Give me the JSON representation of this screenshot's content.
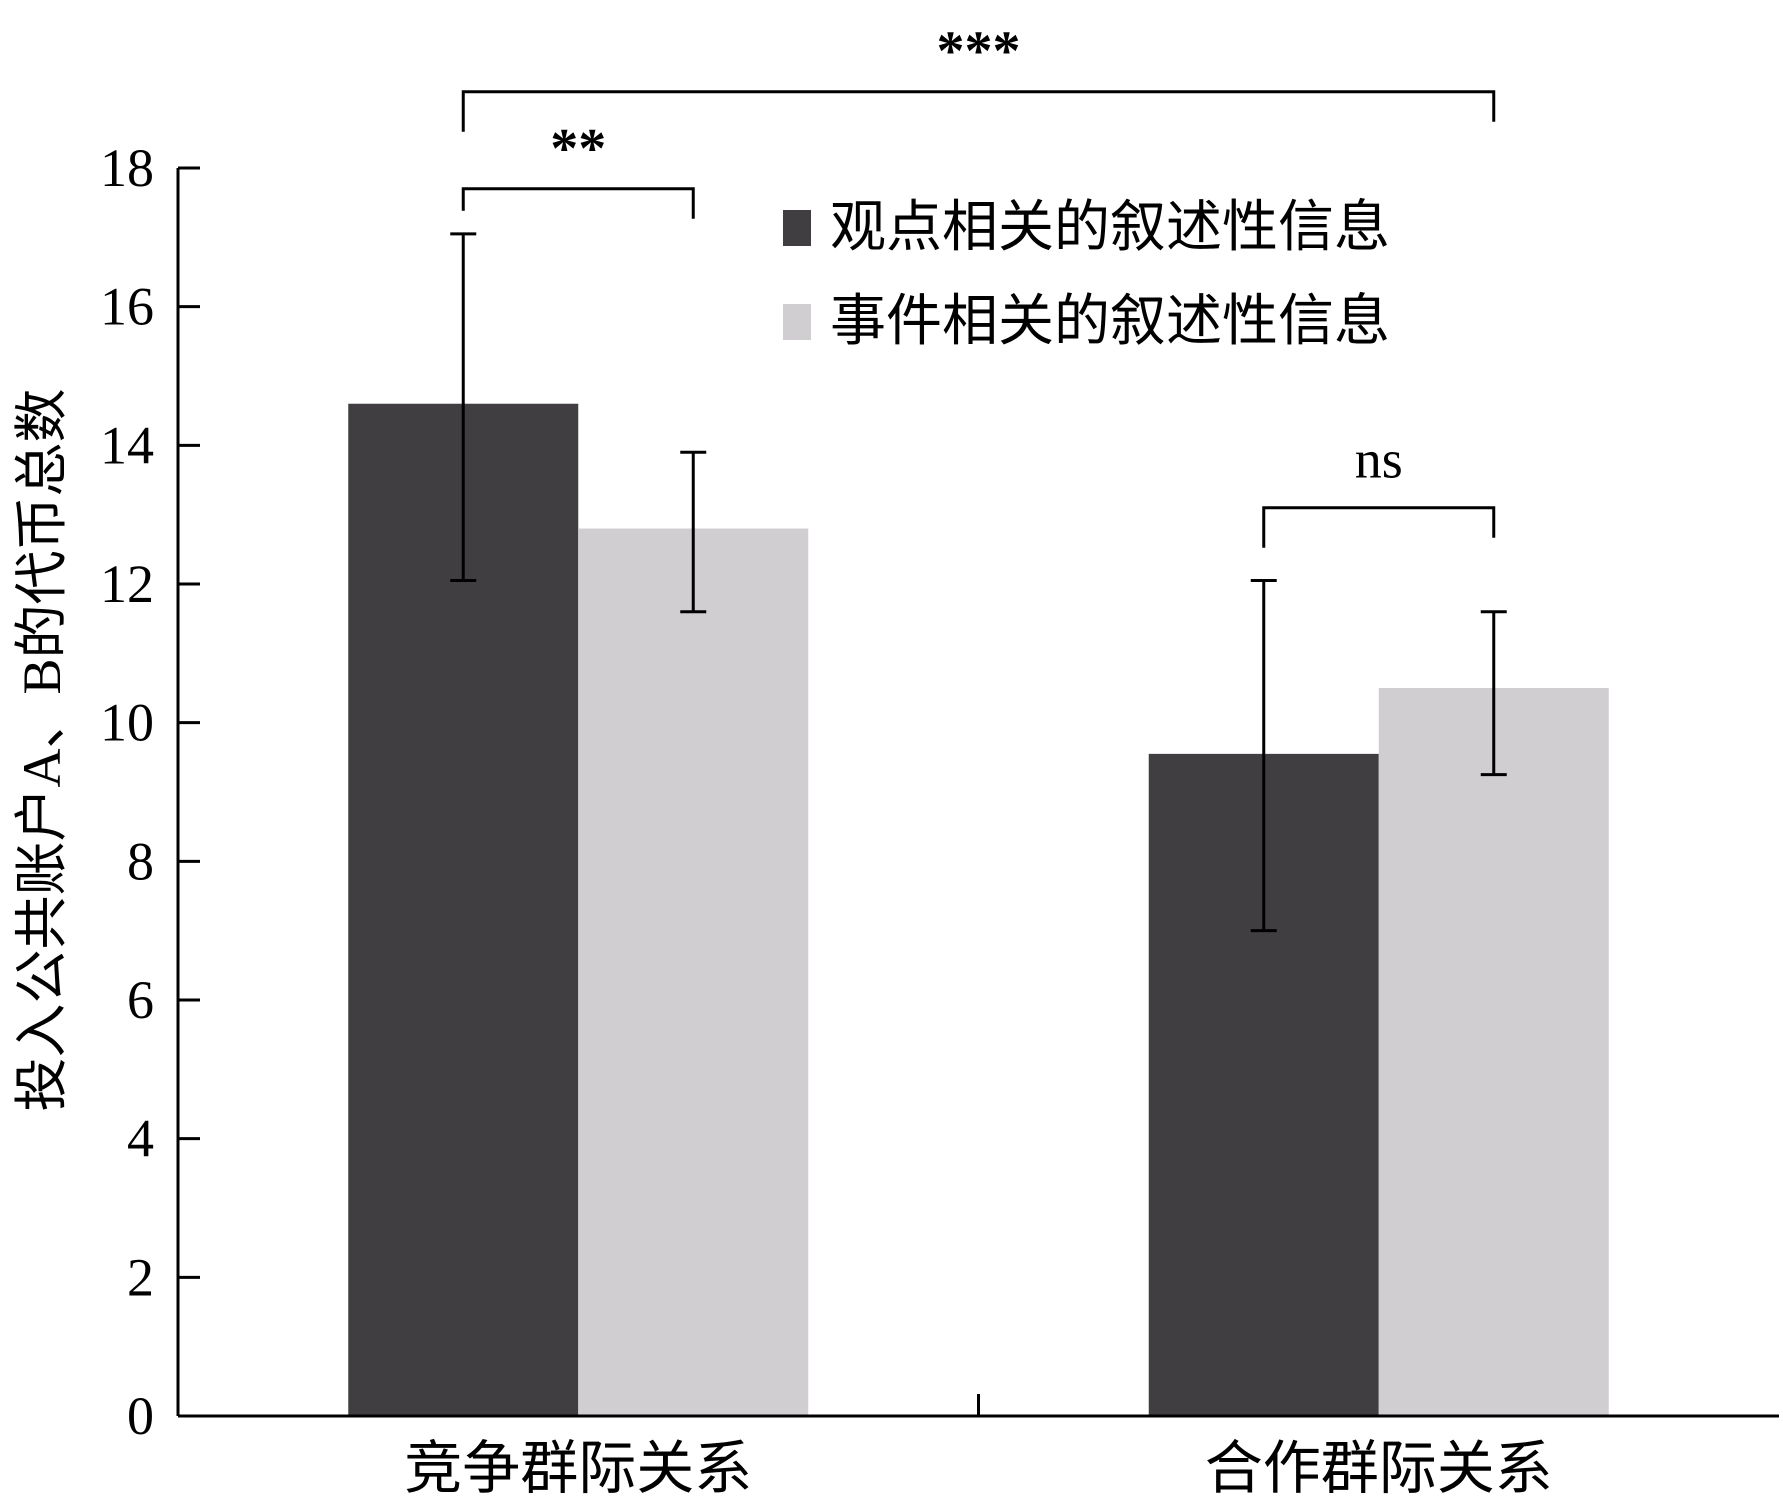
{
  "chart_data": {
    "type": "bar",
    "title": "",
    "xlabel": "",
    "ylabel": "投入公共账户A、B的代币总数",
    "ylim": [
      0,
      18
    ],
    "yticks": [
      0,
      2,
      4,
      6,
      8,
      10,
      12,
      14,
      16,
      18
    ],
    "grid": false,
    "legend_position": "top-right",
    "categories": [
      "竞争群际关系",
      "合作群际关系"
    ],
    "series": [
      {
        "name": "观点相关的叙述性信息",
        "color": "#403e41",
        "values": [
          14.6,
          9.55
        ],
        "error_low": [
          12.05,
          7.0
        ],
        "error_high": [
          17.05,
          12.05
        ]
      },
      {
        "name": "事件相关的叙述性信息",
        "color": "#d1ced1",
        "values": [
          12.8,
          10.5
        ],
        "error_low": [
          11.6,
          9.25
        ],
        "error_high": [
          13.9,
          11.6
        ]
      }
    ],
    "significance": [
      {
        "label": "**",
        "from": {
          "category": 0,
          "series": 0
        },
        "to": {
          "category": 0,
          "series": 1
        }
      },
      {
        "label": "***",
        "from": {
          "category": 0,
          "series": 0
        },
        "to": {
          "category": 1,
          "series": 1
        }
      },
      {
        "label": "ns",
        "from": {
          "category": 1,
          "series": 0
        },
        "to": {
          "category": 1,
          "series": 1
        }
      }
    ]
  }
}
